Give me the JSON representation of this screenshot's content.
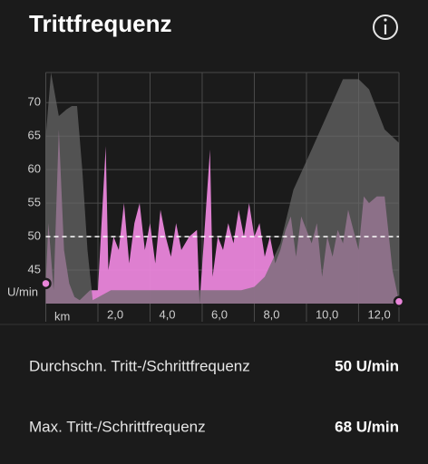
{
  "header": {
    "title": "Trittfrequenz"
  },
  "chart_data": {
    "type": "area",
    "x_label": "km",
    "y_label": "U/min",
    "xlim": [
      0,
      13.55
    ],
    "xticks": [
      {
        "value": 2,
        "label": "2,0"
      },
      {
        "value": 4,
        "label": "4,0"
      },
      {
        "value": 6,
        "label": "6,0"
      },
      {
        "value": 8,
        "label": "8,0"
      },
      {
        "value": 10,
        "label": "10,0"
      },
      {
        "value": 12,
        "label": "12,0"
      }
    ],
    "ylim": [
      40,
      74.5
    ],
    "yticks": [
      45,
      50,
      55,
      60,
      65,
      70
    ],
    "grid": true,
    "mean": 50,
    "series": [
      {
        "color": "#e985da",
        "x": [
          0,
          0.1,
          0.3,
          0.5,
          0.7,
          0.9,
          1.1,
          1.3,
          1.7,
          2.0,
          2.3,
          2.4,
          2.6,
          2.8,
          3.0,
          3.2,
          3.4,
          3.6,
          3.8,
          4.0,
          4.2,
          4.4,
          4.6,
          4.8,
          5.0,
          5.2,
          5.5,
          5.8,
          5.9,
          6.3,
          6.4,
          6.6,
          6.8,
          7.0,
          7.2,
          7.4,
          7.6,
          7.8,
          8.0,
          8.2,
          8.4,
          8.6,
          8.8,
          9.0,
          9.2,
          9.4,
          9.6,
          9.8,
          10.0,
          10.2,
          10.4,
          10.6,
          10.8,
          11.0,
          11.2,
          11.4,
          11.6,
          11.8,
          12.0,
          12.2,
          12.4,
          12.7,
          13.0,
          13.3,
          13.55
        ],
        "values": [
          43,
          52,
          42,
          66,
          48,
          43,
          41,
          40.5,
          42,
          42,
          63.5,
          45,
          50,
          48,
          55,
          46,
          52,
          55,
          48,
          52,
          46,
          54,
          50,
          47,
          52,
          48,
          50,
          51,
          40,
          63,
          44,
          50,
          48,
          52,
          49,
          54,
          50,
          55,
          50,
          52,
          47,
          50,
          46,
          48,
          51,
          53,
          47,
          53,
          51,
          49,
          52,
          44,
          50,
          47,
          51,
          49,
          54,
          51,
          48,
          56,
          55,
          56,
          56,
          45,
          40.3
        ]
      },
      {
        "color": "#6a6a6a",
        "x": [
          0,
          0.2,
          0.5,
          0.8,
          1.0,
          1.2,
          1.4,
          1.6,
          1.8,
          2.5,
          5.0,
          7.5,
          8.0,
          8.4,
          9.0,
          9.5,
          10.2,
          11.0,
          11.4,
          12.0,
          12.4,
          13.0,
          13.55
        ],
        "values": [
          65,
          74.5,
          68,
          69,
          69.5,
          69.5,
          60,
          48,
          40.5,
          42,
          42,
          42,
          42.5,
          44,
          49,
          57,
          63,
          70,
          73.5,
          73.5,
          72,
          66,
          64
        ]
      }
    ]
  },
  "stats": [
    {
      "label": "Durchschn. Tritt-/Schrittfrequenz",
      "value": "50 U/min"
    },
    {
      "label": "Max. Tritt-/Schrittfrequenz",
      "value": "68 U/min"
    }
  ]
}
